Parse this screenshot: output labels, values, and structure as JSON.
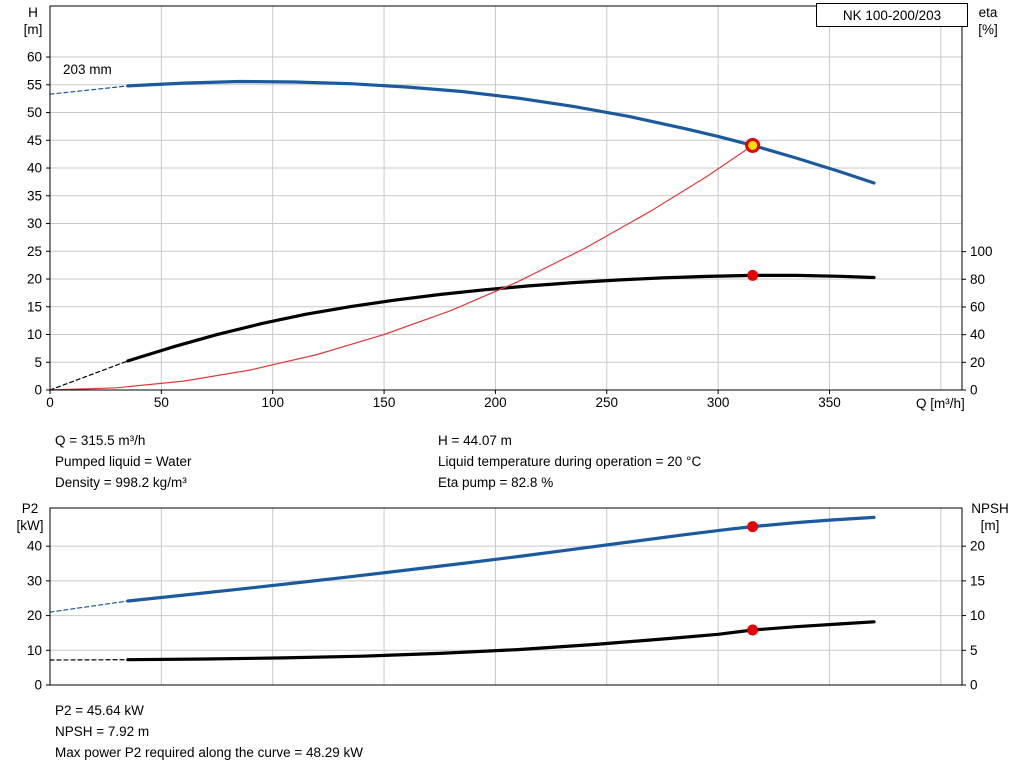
{
  "pump": {
    "model_box": "NK 100-200/203",
    "impeller_label": "203 mm"
  },
  "info": {
    "top_left": [
      "Q = 315.5 m³/h",
      "Pumped liquid = Water",
      "Density = 998.2 kg/m³"
    ],
    "top_right": [
      "H = 44.07 m",
      "Liquid temperature during operation = 20 °C",
      "Eta pump = 82.8 %"
    ],
    "bottom": [
      "P2 = 45.64 kW",
      "NPSH = 7.92 m",
      "Max power P2 required along the curve = 48.29 kW"
    ]
  },
  "colors": {
    "curve_blue": "#1b5a9e",
    "curve_black": "#000000",
    "system_red": "#e03a3a",
    "marker_red": "#e60000",
    "marker_yellow": "#ffdf00",
    "grid": "#c9c9c9"
  },
  "chart_data": [
    {
      "type": "line",
      "title": "NK 100-200/203",
      "xlabel": "Q [m³/h]",
      "ylabel_left": [
        "H",
        "[m]"
      ],
      "ylabel_right": [
        "eta",
        "[%]"
      ],
      "xlim": [
        0,
        409.5
      ],
      "ylim_left": [
        0,
        69.2
      ],
      "ylim_right": [
        0,
        277.5
      ],
      "grid": true,
      "x_ticks": [
        0,
        50,
        100,
        150,
        200,
        250,
        300,
        350
      ],
      "x_grid": [
        50,
        100,
        150,
        200,
        250,
        300,
        350,
        400
      ],
      "y_ticks_left": [
        0,
        5,
        10,
        15,
        20,
        25,
        30,
        35,
        40,
        45,
        50,
        55,
        60
      ],
      "y_ticks_right": [
        0,
        20,
        40,
        60,
        80,
        100
      ],
      "series": [
        {
          "name": "eta-curve-min-flow",
          "axis": "right",
          "color": "#000000",
          "width": 1.2,
          "dash": true,
          "points": [
            [
              0,
              0
            ],
            [
              35,
              21
            ]
          ]
        },
        {
          "name": "eta-curve",
          "axis": "right",
          "color": "#000000",
          "width": 3.2,
          "dash": false,
          "points": [
            [
              35,
              21
            ],
            [
              55,
              31
            ],
            [
              75,
              40
            ],
            [
              95,
              48
            ],
            [
              115,
              54.8
            ],
            [
              135,
              60.3
            ],
            [
              155,
              65
            ],
            [
              175,
              69
            ],
            [
              195,
              72.4
            ],
            [
              215,
              75.2
            ],
            [
              235,
              77.6
            ],
            [
              255,
              79.5
            ],
            [
              275,
              81
            ],
            [
              295,
              82.1
            ],
            [
              315.5,
              82.8
            ],
            [
              335,
              82.8
            ],
            [
              355,
              82.2
            ],
            [
              370,
              81.3
            ]
          ]
        },
        {
          "name": "head-curve-min-flow",
          "axis": "left",
          "color": "#1b5a9e",
          "width": 1.2,
          "dash": true,
          "points": [
            [
              0,
              53.3
            ],
            [
              35,
              54.8
            ]
          ]
        },
        {
          "name": "head-curve",
          "axis": "left",
          "color": "#1b5a9e",
          "width": 3.2,
          "dash": false,
          "points": [
            [
              35,
              54.8
            ],
            [
              60,
              55.3
            ],
            [
              85,
              55.6
            ],
            [
              110,
              55.5
            ],
            [
              135,
              55.2
            ],
            [
              160,
              54.6
            ],
            [
              185,
              53.8
            ],
            [
              210,
              52.6
            ],
            [
              235,
              51.1
            ],
            [
              260,
              49.3
            ],
            [
              285,
              47.1
            ],
            [
              300,
              45.7
            ],
            [
              315.5,
              44.07
            ],
            [
              335,
              41.8
            ],
            [
              355,
              39.3
            ],
            [
              370,
              37.3
            ]
          ]
        },
        {
          "name": "system-resistance-curve",
          "axis": "left",
          "color": "#e03a3a",
          "width": 1.2,
          "dash": false,
          "points": [
            [
              0,
              0
            ],
            [
              30,
              0.4
            ],
            [
              60,
              1.6
            ],
            [
              90,
              3.6
            ],
            [
              120,
              6.4
            ],
            [
              150,
              10
            ],
            [
              180,
              14.3
            ],
            [
              210,
              19.5
            ],
            [
              240,
              25.5
            ],
            [
              270,
              32.3
            ],
            [
              295,
              38.5
            ],
            [
              315.5,
              44.07
            ]
          ]
        }
      ],
      "markers": [
        {
          "name": "duty-point-marker",
          "style": "duty",
          "axis": "left",
          "x": 315.5,
          "y": 44.07
        },
        {
          "name": "eta-duty-dot",
          "style": "dot",
          "axis": "right",
          "x": 315.5,
          "y": 82.8
        }
      ]
    },
    {
      "type": "line",
      "title": "",
      "xlabel": "",
      "ylabel_left": [
        "P2",
        "[kW]"
      ],
      "ylabel_right": [
        "NPSH",
        "[m]"
      ],
      "xlim": [
        0,
        409.5
      ],
      "ylim_left": [
        0,
        51
      ],
      "ylim_right": [
        0,
        25.5
      ],
      "grid": true,
      "x_ticks": [],
      "x_grid": [
        50,
        100,
        150,
        200,
        250,
        300,
        350,
        400
      ],
      "y_ticks_left": [
        0,
        10,
        20,
        30,
        40
      ],
      "y_ticks_right": [
        0,
        5,
        10,
        15,
        20
      ],
      "series": [
        {
          "name": "npsh-curve-min-flow",
          "axis": "right",
          "color": "#000000",
          "width": 1.2,
          "dash": true,
          "points": [
            [
              0,
              3.6
            ],
            [
              35,
              3.65
            ]
          ]
        },
        {
          "name": "npsh-curve",
          "axis": "right",
          "color": "#000000",
          "width": 3.2,
          "dash": false,
          "points": [
            [
              35,
              3.65
            ],
            [
              70,
              3.75
            ],
            [
              105,
              3.9
            ],
            [
              140,
              4.15
            ],
            [
              175,
              4.55
            ],
            [
              210,
              5.1
            ],
            [
              245,
              5.85
            ],
            [
              280,
              6.75
            ],
            [
              300,
              7.3
            ],
            [
              315.5,
              7.92
            ],
            [
              335,
              8.4
            ],
            [
              355,
              8.8
            ],
            [
              370,
              9.1
            ]
          ]
        },
        {
          "name": "p2-curve-min-flow",
          "axis": "left",
          "color": "#1b5a9e",
          "width": 1.2,
          "dash": true,
          "points": [
            [
              0,
              21
            ],
            [
              35,
              24.2
            ]
          ]
        },
        {
          "name": "p2-curve",
          "axis": "left",
          "color": "#1b5a9e",
          "width": 3.2,
          "dash": false,
          "points": [
            [
              35,
              24.2
            ],
            [
              60,
              25.9
            ],
            [
              85,
              27.6
            ],
            [
              110,
              29.4
            ],
            [
              135,
              31.2
            ],
            [
              160,
              33.1
            ],
            [
              185,
              35
            ],
            [
              210,
              37
            ],
            [
              235,
              39.1
            ],
            [
              260,
              41.2
            ],
            [
              285,
              43.3
            ],
            [
              305,
              44.9
            ],
            [
              315.5,
              45.64
            ],
            [
              335,
              46.8
            ],
            [
              350,
              47.5
            ],
            [
              370,
              48.29
            ]
          ]
        }
      ],
      "markers": [
        {
          "name": "p2-duty-dot",
          "style": "dot",
          "axis": "left",
          "x": 315.5,
          "y": 45.64
        },
        {
          "name": "npsh-duty-dot",
          "style": "dot",
          "axis": "right",
          "x": 315.5,
          "y": 7.92
        }
      ]
    }
  ]
}
